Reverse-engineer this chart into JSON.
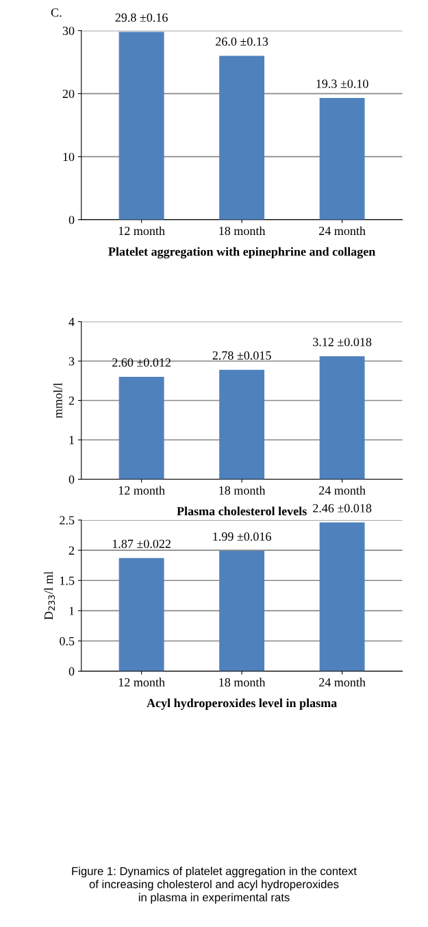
{
  "chart_data": [
    {
      "type": "bar",
      "categories": [
        "12 month",
        "18 month",
        "24 month"
      ],
      "values": [
        29.8,
        26.0,
        19.3
      ],
      "value_labels": [
        "29.8 ±0.16",
        "26.0 ±0.13",
        "19.3 ±0.10"
      ],
      "color": "#4f81bd",
      "xlabel": "Platelet aggregation with epinephrine and collagen",
      "ylim": [
        0,
        30
      ],
      "yticks": [
        0,
        10,
        20,
        30
      ],
      "grid": "y",
      "annotations": [
        "C."
      ]
    },
    {
      "type": "bar",
      "categories": [
        "12 month",
        "18 month",
        "24 month"
      ],
      "values": [
        2.6,
        2.78,
        3.12
      ],
      "value_labels": [
        "2.60 ±0.012",
        "2.78 ±0.015",
        "3.12 ±0.018"
      ],
      "color": "#4f81bd",
      "xlabel": "Plasma cholesterol levels",
      "ylabel": "mmol/l",
      "ylim": [
        0,
        4
      ],
      "yticks": [
        0,
        1,
        2,
        3,
        4
      ],
      "grid": "y"
    },
    {
      "type": "bar",
      "categories": [
        "12 month",
        "18 month",
        "24 month"
      ],
      "values": [
        1.87,
        1.99,
        2.46
      ],
      "value_labels": [
        "1.87 ±0.022",
        "1.99 ±0.016",
        "2.46 ±0.018"
      ],
      "color": "#4f81bd",
      "xlabel": "Acyl hydroperoxides level in plasma",
      "ylabel": "D$_{233}$/l ml",
      "ylim": [
        0,
        2.5
      ],
      "yticks": [
        0,
        0.5,
        1,
        1.5,
        2,
        2.5
      ],
      "grid": "y",
      "annotations": [
        "Figure 1: Dynamics of platelet aggregation in the context\nof increasing cholesterol and acyl hydroperoxides\nin plasma in experimental rats"
      ]
    }
  ]
}
